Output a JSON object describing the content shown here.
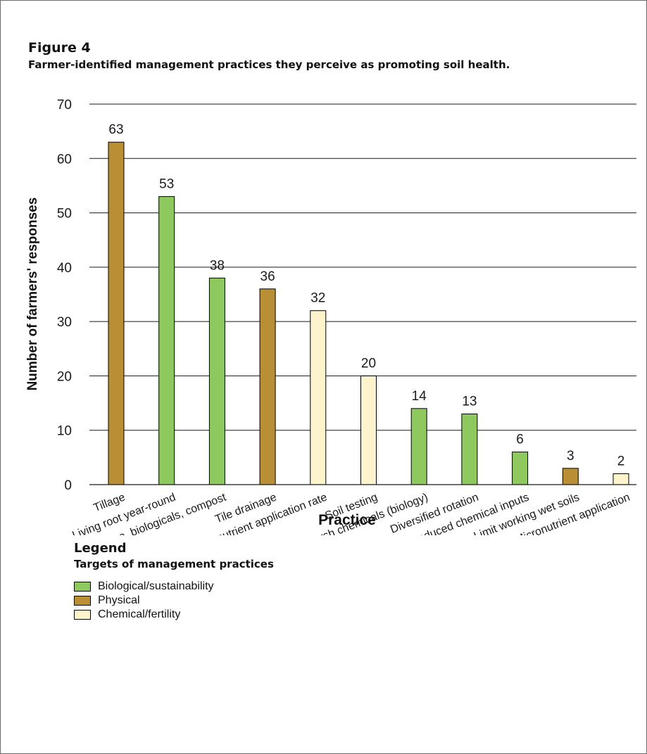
{
  "figure": {
    "label": "Figure 4",
    "caption": "Farmer-identified management practices they perceive as promoting soil health."
  },
  "legend": {
    "title": "Legend",
    "subtitle": "Targets of management practices",
    "items": [
      {
        "label": "Biological/sustainability",
        "color": "#8dc95f"
      },
      {
        "label": "Physical",
        "color": "#b98e34"
      },
      {
        "label": "Chemical/fertility",
        "color": "#fdf4cc"
      }
    ]
  },
  "chart_data": {
    "type": "bar",
    "title": "",
    "xlabel": "Practice",
    "ylabel": "Number of farmers' responses",
    "ylim": [
      0,
      70
    ],
    "yticks": [
      0,
      10,
      20,
      30,
      40,
      50,
      60,
      70
    ],
    "grid": true,
    "legend_position": "bottom-left",
    "categories": [
      "Tillage",
      "Living root year-round",
      "Manure, biologicals, compost",
      "Tile drainage",
      "Right nutrient application rate",
      "Soil testing",
      "Limit harsh chemicals (biology)",
      "Diversified rotation",
      "Reduced chemical inputs",
      "Limit working wet soils",
      "Micronutrient application"
    ],
    "values": [
      63,
      53,
      38,
      36,
      32,
      20,
      14,
      13,
      6,
      3,
      2
    ],
    "targets": [
      "Physical",
      "Biological/sustainability",
      "Biological/sustainability",
      "Physical",
      "Chemical/fertility",
      "Chemical/fertility",
      "Biological/sustainability",
      "Biological/sustainability",
      "Biological/sustainability",
      "Physical",
      "Chemical/fertility"
    ]
  }
}
